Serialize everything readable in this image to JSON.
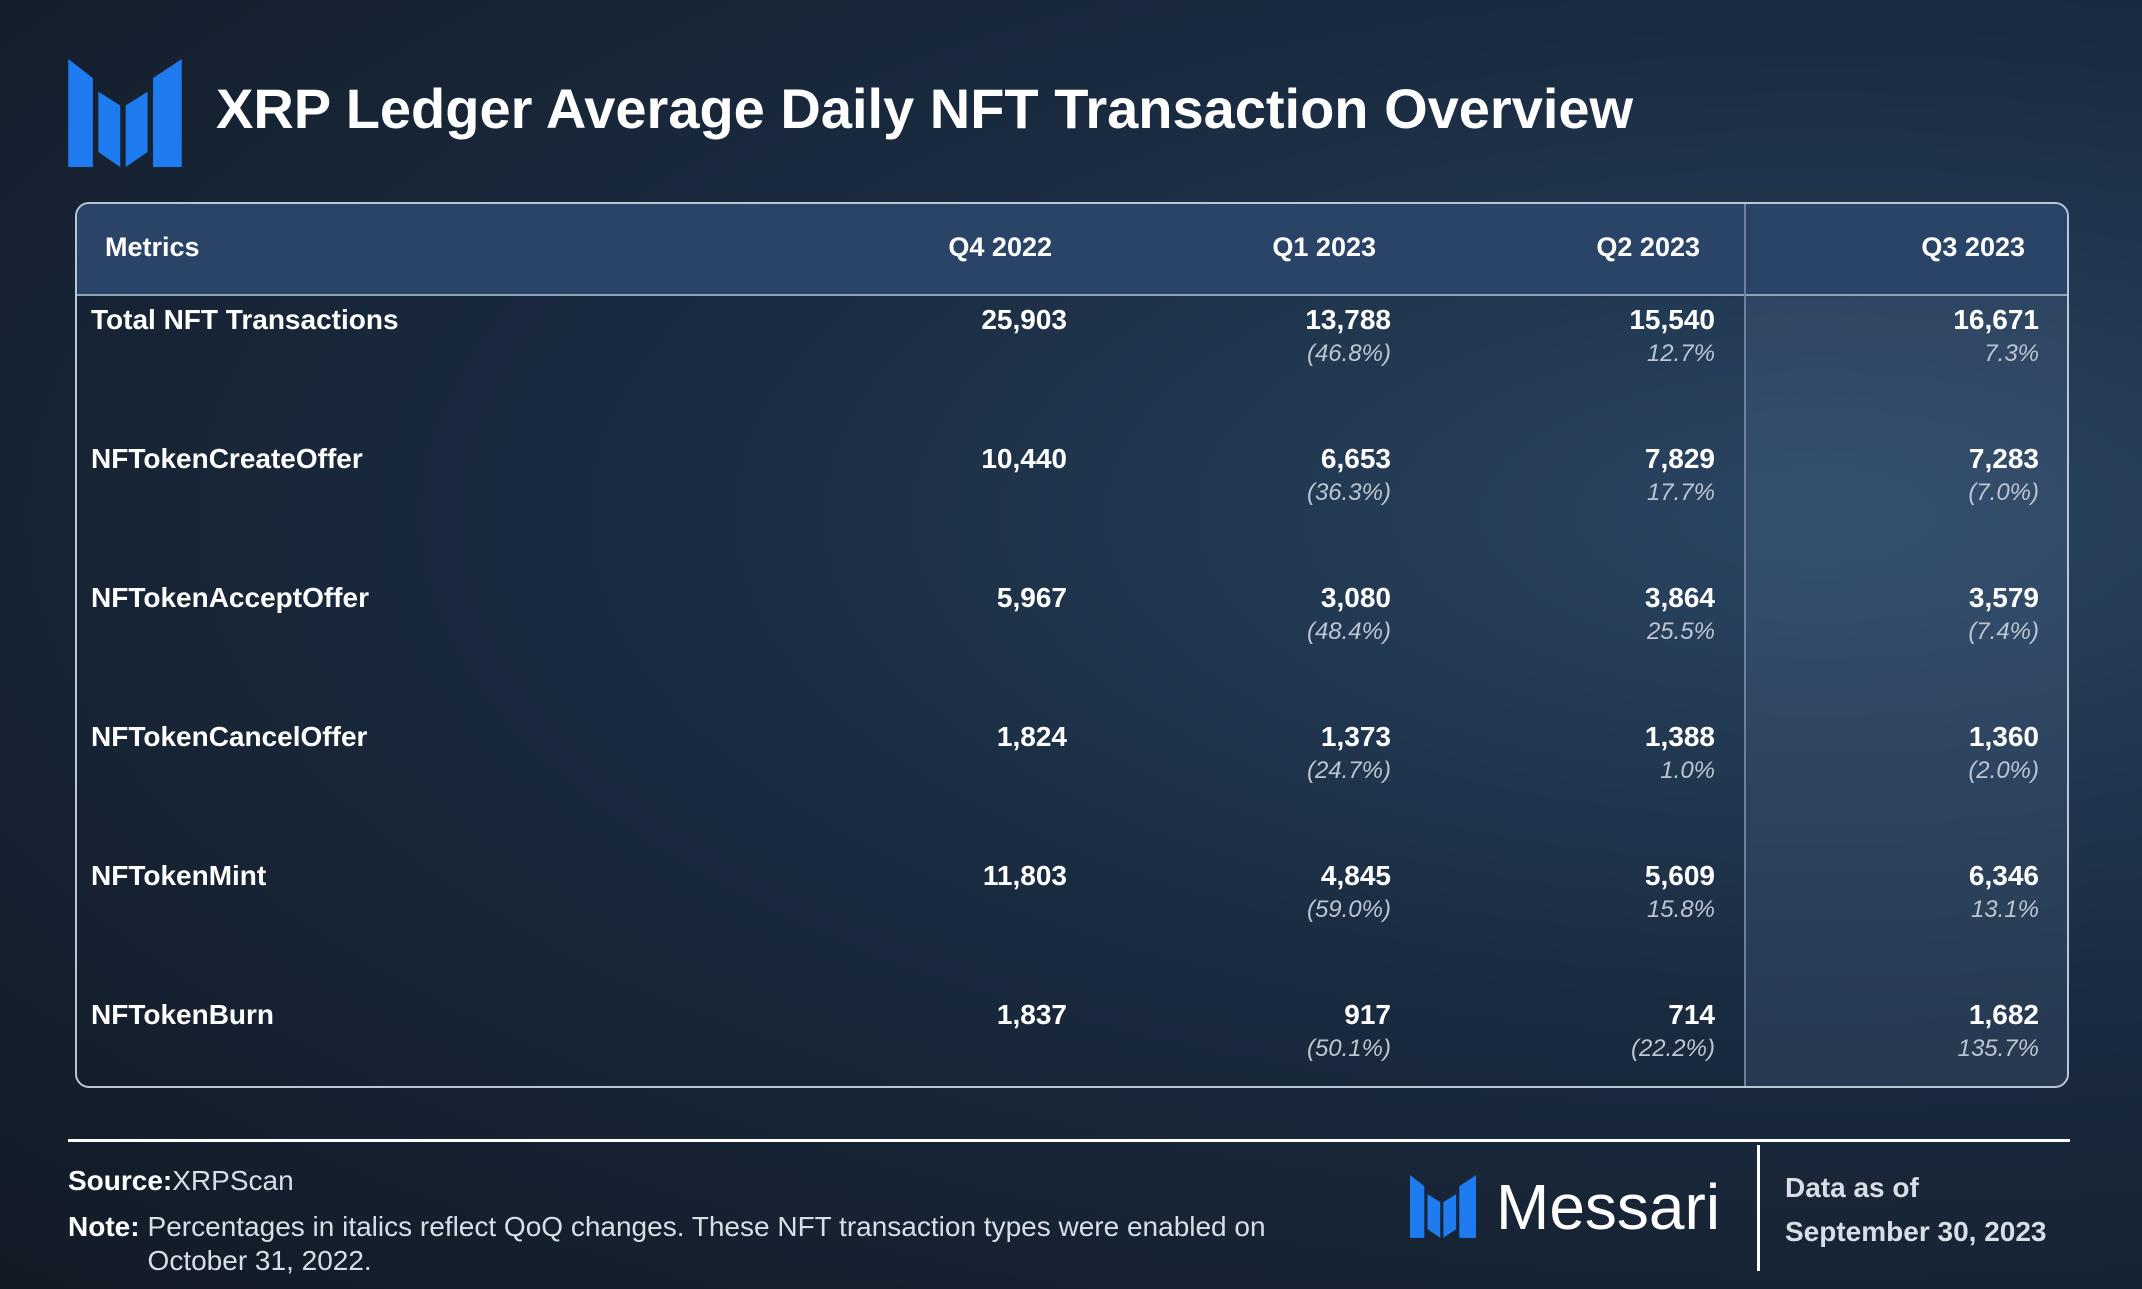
{
  "header": {
    "title": "XRP Ledger Average Daily NFT Transaction Overview"
  },
  "table": {
    "columns": [
      "Metrics",
      "Q4 2022",
      "Q1 2023",
      "Q2 2023",
      "Q3 2023"
    ],
    "rows": [
      {
        "label": "Total NFT Transactions",
        "cells": [
          {
            "value": "25,903"
          },
          {
            "value": "13,788",
            "change": "(46.8%)"
          },
          {
            "value": "15,540",
            "change": "12.7%"
          },
          {
            "value": "16,671",
            "change": "7.3%"
          }
        ]
      },
      {
        "label": "NFTokenCreateOffer",
        "cells": [
          {
            "value": "10,440"
          },
          {
            "value": "6,653",
            "change": "(36.3%)"
          },
          {
            "value": "7,829",
            "change": "17.7%"
          },
          {
            "value": "7,283",
            "change": "(7.0%)"
          }
        ]
      },
      {
        "label": "NFTokenAcceptOffer",
        "cells": [
          {
            "value": "5,967"
          },
          {
            "value": "3,080",
            "change": "(48.4%)"
          },
          {
            "value": "3,864",
            "change": "25.5%"
          },
          {
            "value": "3,579",
            "change": "(7.4%)"
          }
        ]
      },
      {
        "label": "NFTokenCancelOffer",
        "cells": [
          {
            "value": "1,824"
          },
          {
            "value": "1,373",
            "change": "(24.7%)"
          },
          {
            "value": "1,388",
            "change": "1.0%"
          },
          {
            "value": "1,360",
            "change": "(2.0%)"
          }
        ]
      },
      {
        "label": "NFTokenMint",
        "cells": [
          {
            "value": "11,803"
          },
          {
            "value": "4,845",
            "change": "(59.0%)"
          },
          {
            "value": "5,609",
            "change": "15.8%"
          },
          {
            "value": "6,346",
            "change": "13.1%"
          }
        ]
      },
      {
        "label": "NFTokenBurn",
        "cells": [
          {
            "value": "1,837"
          },
          {
            "value": "917",
            "change": "(50.1%)"
          },
          {
            "value": "714",
            "change": "(22.2%)"
          },
          {
            "value": "1,682",
            "change": "135.7%"
          }
        ]
      }
    ]
  },
  "footer": {
    "source_label": "Source:",
    "source": "XRPScan",
    "note_label": "Note:",
    "note": "Percentages in italics reflect QoQ changes. These NFT transaction types were enabled on October 31, 2022.",
    "brand": "Messari",
    "data_as_of_label": "Data as of",
    "data_as_of": "September 30, 2023"
  }
}
